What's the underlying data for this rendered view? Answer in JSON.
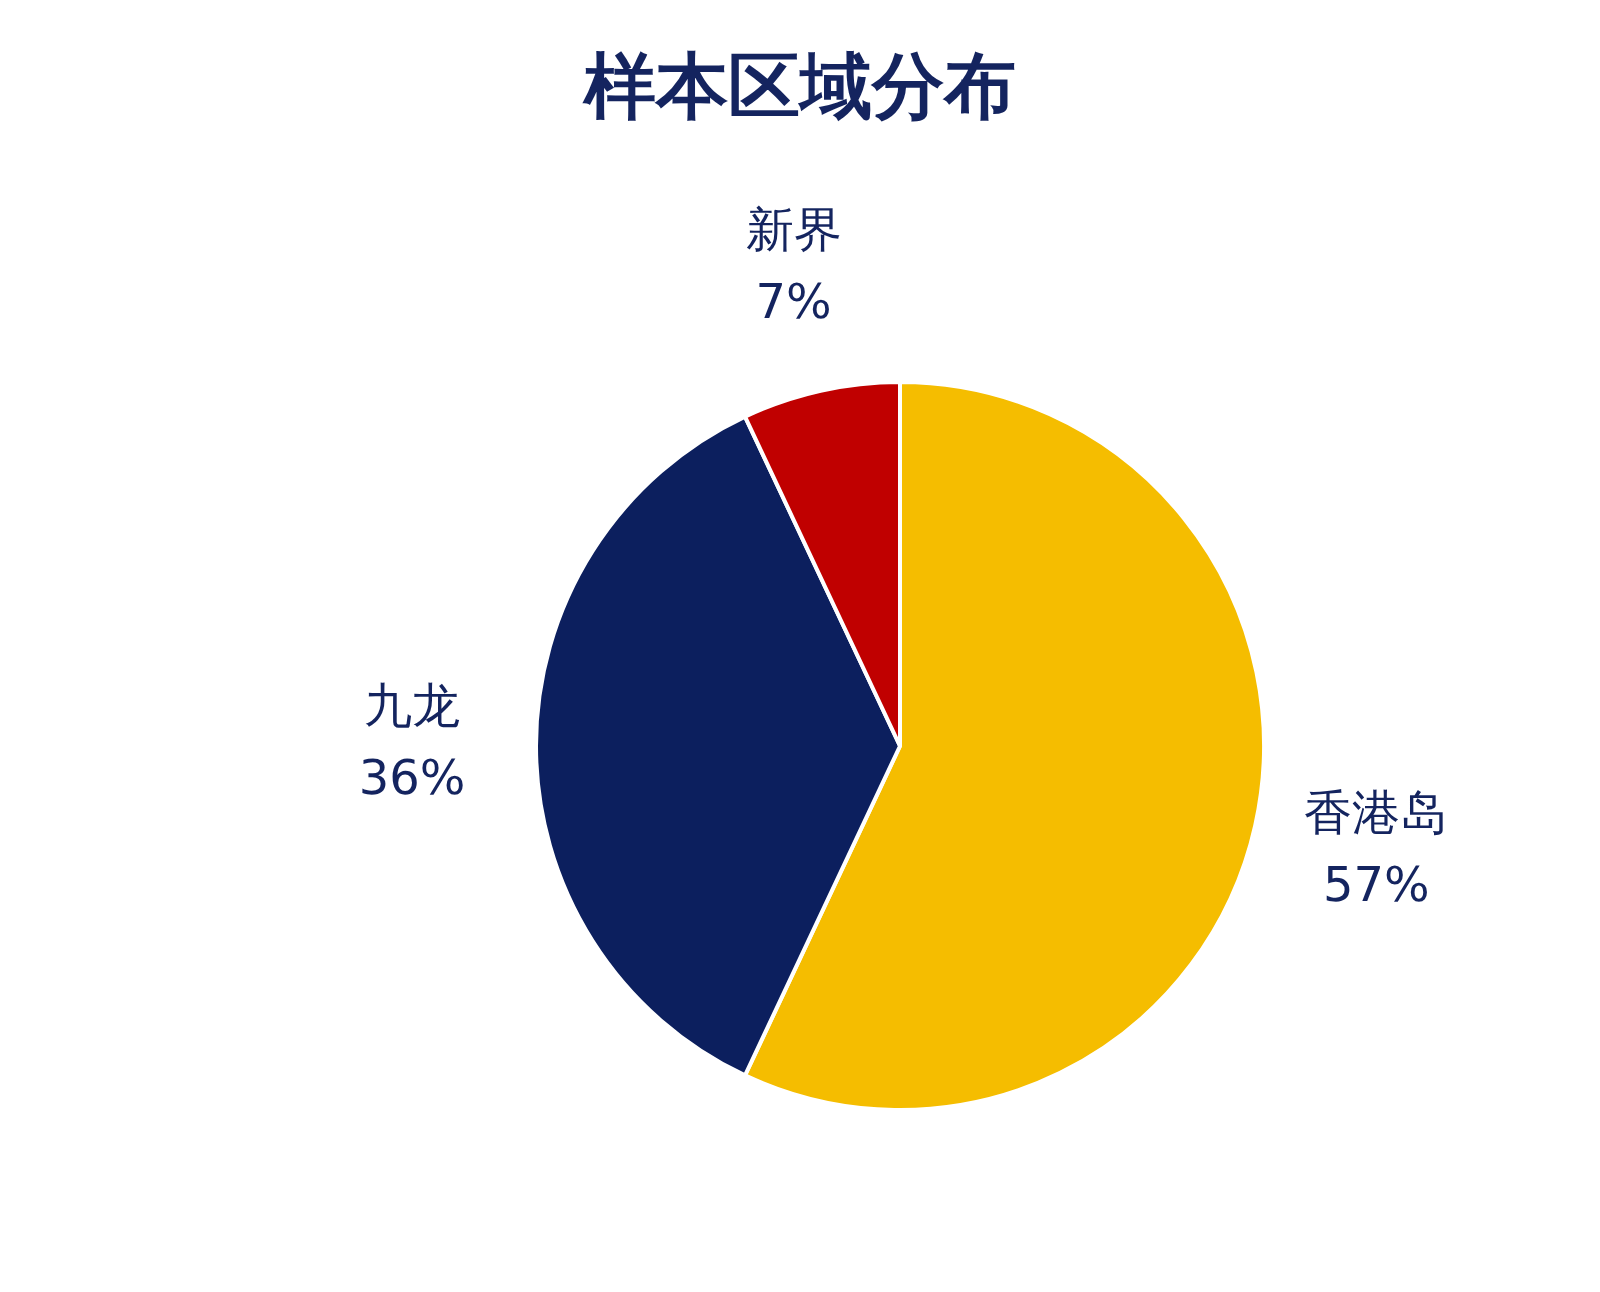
{
  "chart_data": {
    "type": "pie",
    "title": "样本区域分布",
    "categories": [
      "香港岛",
      "九龙",
      "新界"
    ],
    "values": [
      57,
      36,
      7
    ],
    "colors": [
      "#f5bd00",
      "#0c1f5e",
      "#c00000"
    ],
    "value_labels": [
      "57%",
      "36%",
      "7%"
    ],
    "legend": false
  }
}
